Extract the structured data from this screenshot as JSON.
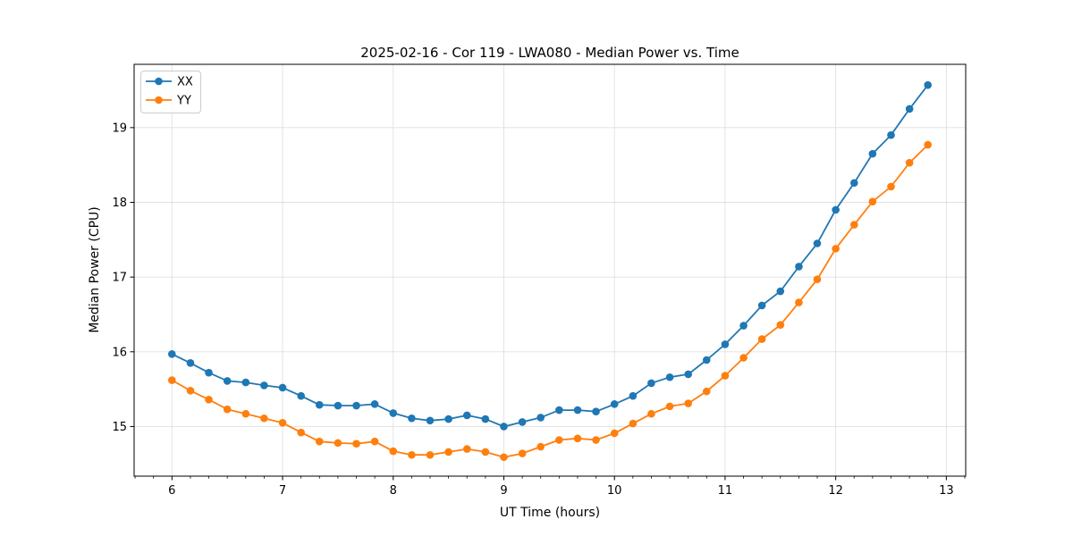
{
  "figure": {
    "background": "#ffffff"
  },
  "chart_data": {
    "type": "line",
    "title": "2025-02-16 - Cor 119 - LWA080 - Median Power vs. Time",
    "xlabel": "UT Time (hours)",
    "ylabel": "Median Power (CPU)",
    "x": [
      6.0,
      6.167,
      6.333,
      6.5,
      6.667,
      6.833,
      7.0,
      7.167,
      7.333,
      7.5,
      7.667,
      7.833,
      8.0,
      8.167,
      8.333,
      8.5,
      8.667,
      8.833,
      9.0,
      9.167,
      9.333,
      9.5,
      9.667,
      9.833,
      10.0,
      10.167,
      10.333,
      10.5,
      10.667,
      10.833,
      11.0,
      11.167,
      11.333,
      11.5,
      11.667,
      11.833,
      12.0,
      12.167,
      12.333,
      12.5,
      12.667,
      12.833
    ],
    "series": [
      {
        "name": "XX",
        "color": "#1f77b4",
        "values": [
          15.97,
          15.85,
          15.72,
          15.61,
          15.59,
          15.55,
          15.52,
          15.41,
          15.29,
          15.28,
          15.28,
          15.3,
          15.18,
          15.11,
          15.08,
          15.1,
          15.15,
          15.1,
          15.0,
          15.06,
          15.12,
          15.22,
          15.22,
          15.2,
          15.3,
          15.41,
          15.58,
          15.66,
          15.7,
          15.89,
          16.1,
          16.35,
          16.62,
          16.81,
          17.14,
          17.45,
          17.9,
          18.26,
          18.65,
          18.9,
          19.25,
          19.57
        ]
      },
      {
        "name": "YY",
        "color": "#ff7f0e",
        "values": [
          15.62,
          15.48,
          15.36,
          15.23,
          15.17,
          15.11,
          15.05,
          14.92,
          14.8,
          14.78,
          14.77,
          14.8,
          14.67,
          14.62,
          14.62,
          14.66,
          14.7,
          14.66,
          14.59,
          14.64,
          14.73,
          14.82,
          14.84,
          14.82,
          14.91,
          15.04,
          15.17,
          15.27,
          15.31,
          15.47,
          15.68,
          15.92,
          16.17,
          16.36,
          16.66,
          16.97,
          17.38,
          17.7,
          18.01,
          18.21,
          18.53,
          18.77
        ]
      }
    ],
    "xlim": [
      5.658,
      13.175
    ],
    "ylim": [
      14.336,
      19.847
    ],
    "xticks": [
      "6",
      "7",
      "8",
      "9",
      "10",
      "11",
      "12",
      "13"
    ],
    "xtick_values": [
      6,
      7,
      8,
      9,
      10,
      11,
      12,
      13
    ],
    "yticks": [
      "15",
      "16",
      "17",
      "18",
      "19"
    ],
    "ytick_values": [
      15,
      16,
      17,
      18,
      19
    ],
    "x_minor_step": 0.16667,
    "grid": true,
    "grid_color": "#e0e0e0",
    "legend_position": "upper left",
    "legend_entries": [
      "XX",
      "YY"
    ],
    "marker": "o"
  }
}
